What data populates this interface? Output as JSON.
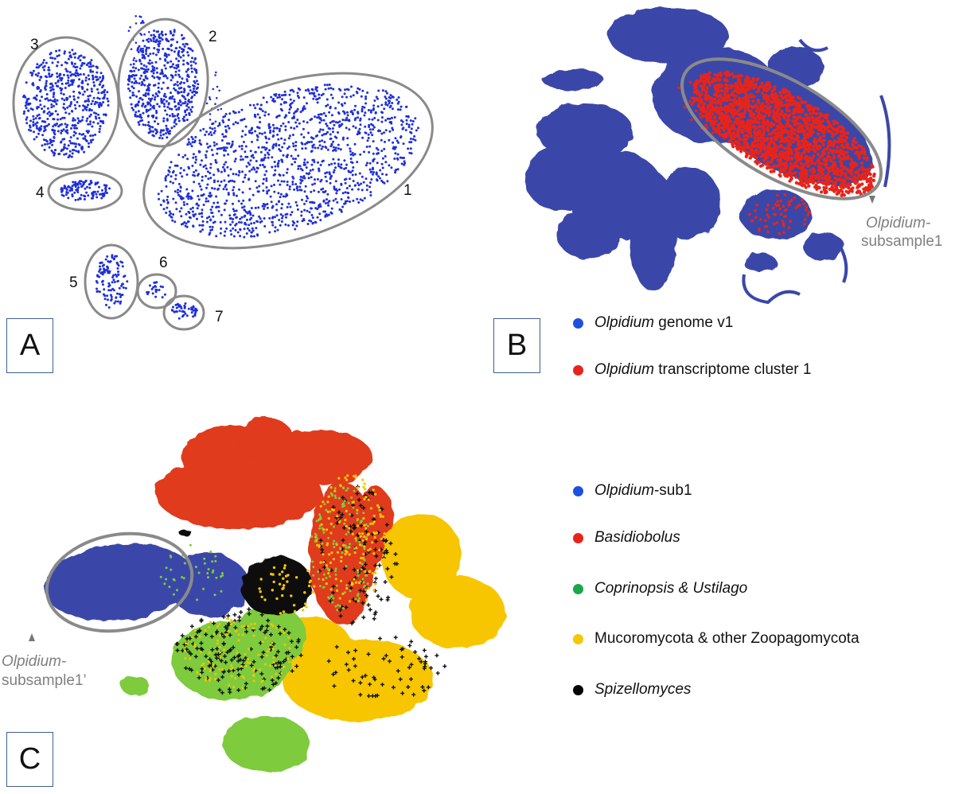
{
  "panels": {
    "a": {
      "label": "A"
    },
    "b": {
      "label": "B"
    },
    "c": {
      "label": "C"
    }
  },
  "panel_b_annotation": {
    "line1": "Olpidium-",
    "line2": "subsample1"
  },
  "panel_c_annotation": {
    "line1": "Olpidium-",
    "line2": "subsample1’"
  },
  "legend_b": [
    {
      "italic": "Olpidium",
      "rest": " genome v1",
      "color": "#1f4fe0"
    },
    {
      "italic": "Olpidium",
      "rest": " transcriptome cluster 1",
      "color": "#e8241a"
    }
  ],
  "legend_c": [
    {
      "italic": "Olpidium",
      "rest": "-sub1",
      "color": "#1f4fe0"
    },
    {
      "italic": "Basidiobolus",
      "rest": "",
      "color": "#e8241a"
    },
    {
      "italic": "Coprinopsis & Ustilago",
      "rest": "",
      "color": "#19a84a"
    },
    {
      "italic": "",
      "rest": "Mucoromycota & other Zoopagomycota",
      "color": "#f7c600"
    },
    {
      "italic": "Spizellomyces",
      "rest": "",
      "color": "#000000"
    }
  ],
  "chart_data": [
    {
      "type": "scatter",
      "title": "",
      "cluster_labels": [
        "1",
        "2",
        "3",
        "4",
        "5",
        "6",
        "7"
      ],
      "point_color": "#1f2fd8",
      "encircled_clusters": 7
    },
    {
      "type": "scatter",
      "title": "",
      "series": [
        {
          "name": "Olpidium genome v1",
          "color": "#3a47a8"
        },
        {
          "name": "Olpidium transcriptome cluster 1",
          "color": "#e8241a"
        }
      ],
      "annotation": "Olpidium-subsample1"
    },
    {
      "type": "scatter",
      "title": "",
      "series": [
        {
          "name": "Olpidium-sub1",
          "color": "#3a47a8"
        },
        {
          "name": "Basidiobolus",
          "color": "#e03a1e"
        },
        {
          "name": "Coprinopsis & Ustilago",
          "color": "#7ecb3c"
        },
        {
          "name": "Mucoromycota & other Zoopagomycota",
          "color": "#f7c600"
        },
        {
          "name": "Spizellomyces",
          "color": "#000000"
        }
      ],
      "annotation": "Olpidium-subsample1’"
    }
  ]
}
